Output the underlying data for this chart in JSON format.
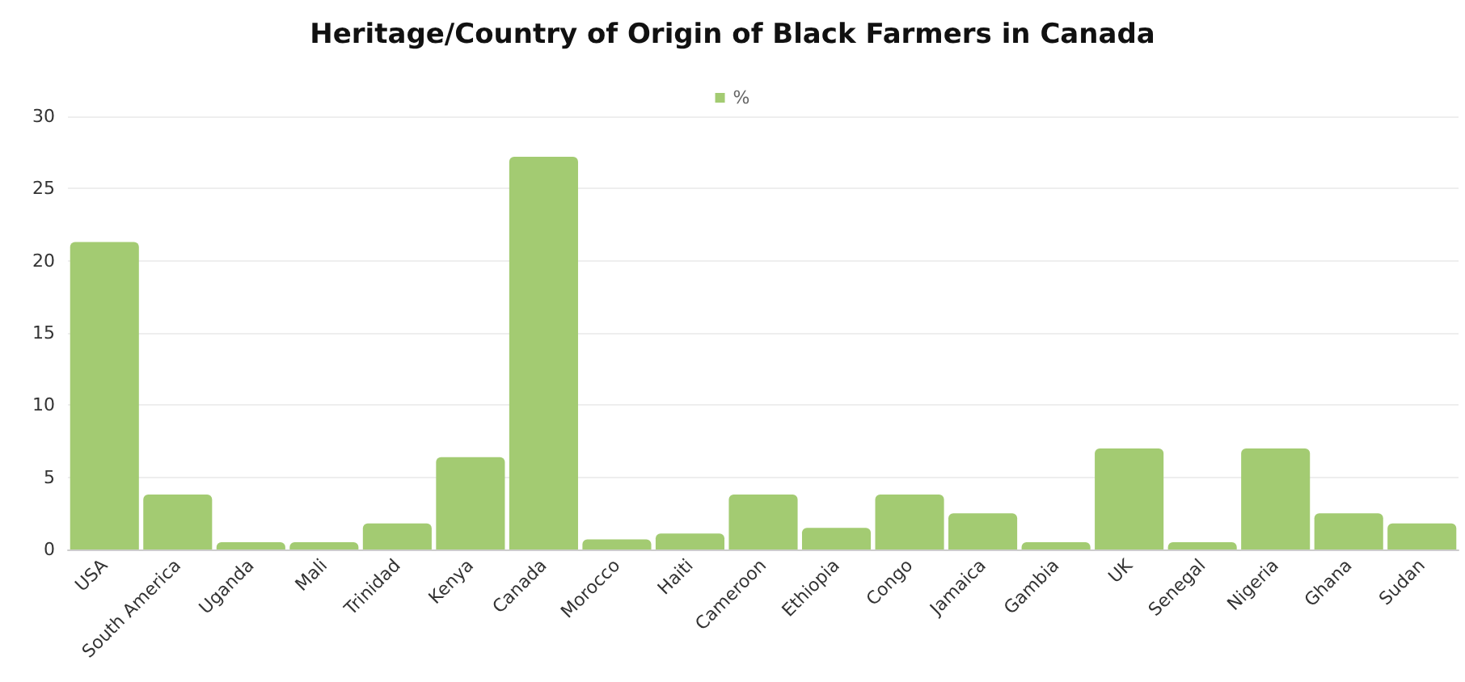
{
  "chart_data": {
    "type": "bar",
    "title": "Heritage/Country of Origin of Black Farmers in Canada",
    "categories": [
      "USA",
      "South America",
      "Uganda",
      "Mali",
      "Trinidad",
      "Kenya",
      "Canada",
      "Morocco",
      "Haiti",
      "Cameroon",
      "Ethiopia",
      "Congo",
      "Jamaica",
      "Gambia",
      "UK",
      "Senegal",
      "Nigeria",
      "Ghana",
      "Sudan"
    ],
    "series": [
      {
        "name": "%",
        "color": "#a3cb72",
        "values": [
          21.3,
          3.8,
          0.5,
          0.5,
          1.8,
          6.4,
          27.2,
          0.7,
          1.1,
          3.8,
          1.5,
          3.8,
          2.5,
          0.5,
          7.0,
          0.5,
          7.0,
          2.5,
          1.8
        ]
      }
    ],
    "ylim": [
      0,
      30
    ],
    "yticks": [
      0,
      5,
      10,
      15,
      20,
      25,
      30
    ],
    "grid": "y",
    "legend": "top"
  }
}
